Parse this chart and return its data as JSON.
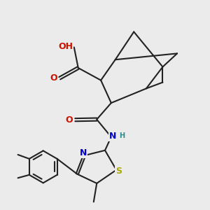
{
  "bg": "#ebebeb",
  "bc": "#222222",
  "bw": 1.5,
  "atom_colors": {
    "O": "#cc1100",
    "N": "#0000cc",
    "S": "#aaaa00",
    "H": "#2d8b8b",
    "C": "#222222"
  },
  "fs": 9.0,
  "xlim": [
    0,
    10
  ],
  "ylim": [
    0,
    10
  ]
}
